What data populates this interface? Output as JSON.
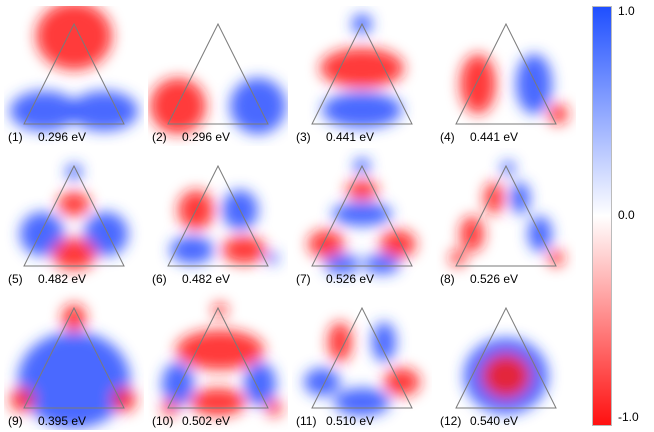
{
  "panels": [
    {
      "index": "(1)",
      "energy": "0.296 eV"
    },
    {
      "index": "(2)",
      "energy": "0.296 eV"
    },
    {
      "index": "(3)",
      "energy": "0.441 eV"
    },
    {
      "index": "(4)",
      "energy": "0.441 eV"
    },
    {
      "index": "(5)",
      "energy": "0.482 eV"
    },
    {
      "index": "(6)",
      "energy": "0.482 eV"
    },
    {
      "index": "(7)",
      "energy": "0.526 eV"
    },
    {
      "index": "(8)",
      "energy": "0.526 eV"
    },
    {
      "index": "(9)",
      "energy": "0.395 eV"
    },
    {
      "index": "(10)",
      "energy": "0.502 eV"
    },
    {
      "index": "(11)",
      "energy": "0.510 eV"
    },
    {
      "index": "(12)",
      "energy": "0.540 eV"
    }
  ],
  "colorbar": {
    "max_label": "1.0",
    "mid_label": "0.0",
    "min_label": "-1.0",
    "max_color": "#1f4fff",
    "mid_color": "#ffffff",
    "min_color": "#ff1010"
  }
}
